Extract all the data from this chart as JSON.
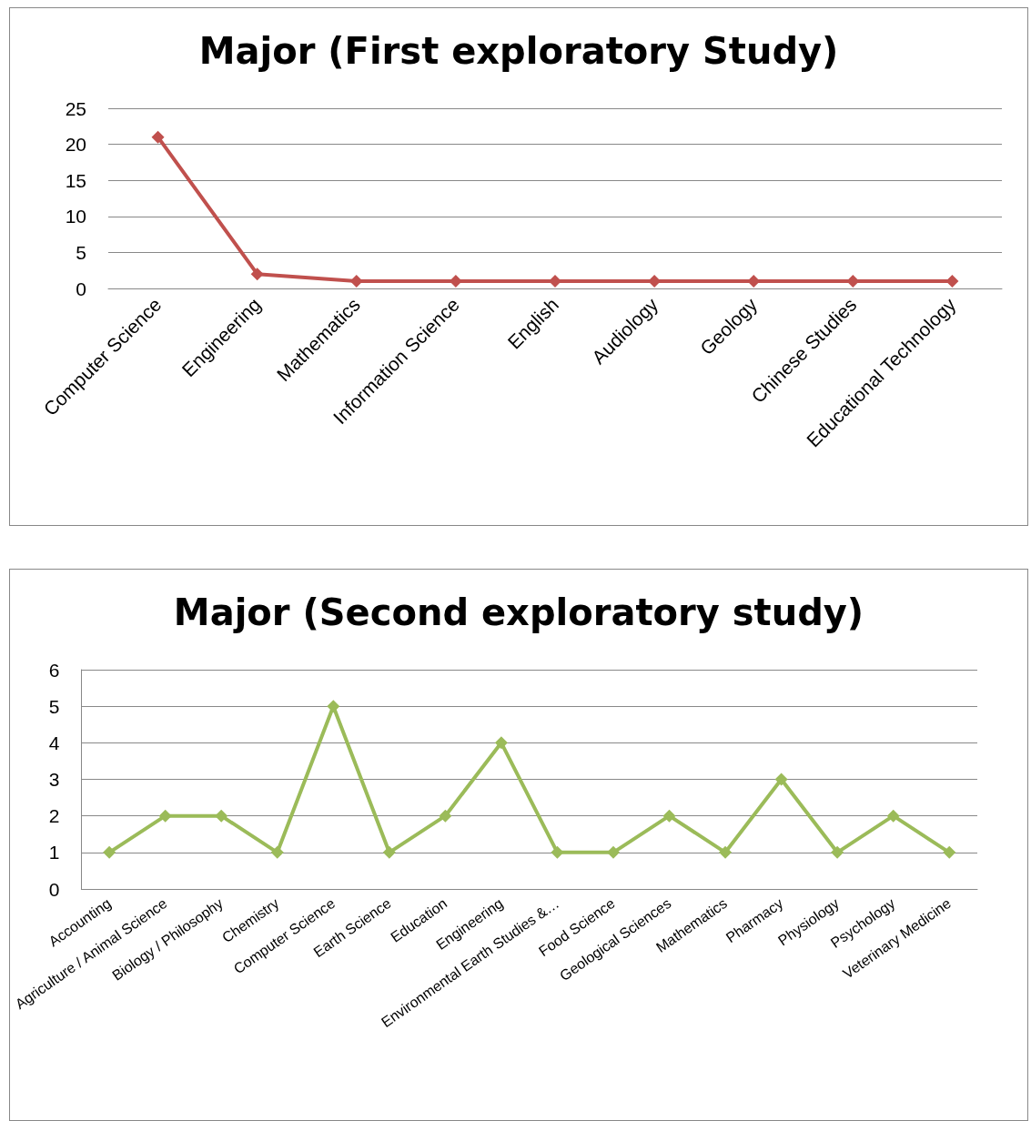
{
  "chart_data": [
    {
      "type": "line",
      "title": "Major (First exploratory Study)",
      "categories": [
        "Computer Science",
        "Engineering",
        "Mathematics",
        "Information Science",
        "English",
        "Audiology",
        "Geology",
        "Chinese Studies",
        "Educational Technology"
      ],
      "series": [
        {
          "color": "#c0504d",
          "values": [
            21,
            2,
            1,
            1,
            1,
            1,
            1,
            1,
            1
          ]
        }
      ],
      "ylim": [
        0,
        25
      ],
      "yticks": [
        0,
        5,
        10,
        15,
        20,
        25
      ],
      "grid": "y",
      "marker": "diamond"
    },
    {
      "type": "line",
      "title": "Major (Second exploratory study)",
      "categories": [
        "Accounting",
        "Agriculture / Animal Science",
        "Biology / Philosophy",
        "Chemistry",
        "Computer Science",
        "Earth Science",
        "Education",
        "Engineering",
        "Environmental Earth Studies &…",
        "Food Science",
        "Geological Sciences",
        "Mathematics",
        "Pharmacy",
        "Physiology",
        "Psychology",
        "Veterinary Medicine"
      ],
      "series": [
        {
          "color": "#9bbb59",
          "values": [
            1,
            2,
            2,
            1,
            5,
            1,
            2,
            4,
            1,
            1,
            2,
            1,
            3,
            1,
            2,
            1
          ]
        }
      ],
      "ylim": [
        0,
        6
      ],
      "yticks": [
        0,
        1,
        2,
        3,
        4,
        5,
        6
      ],
      "grid": "y",
      "marker": "diamond"
    }
  ]
}
